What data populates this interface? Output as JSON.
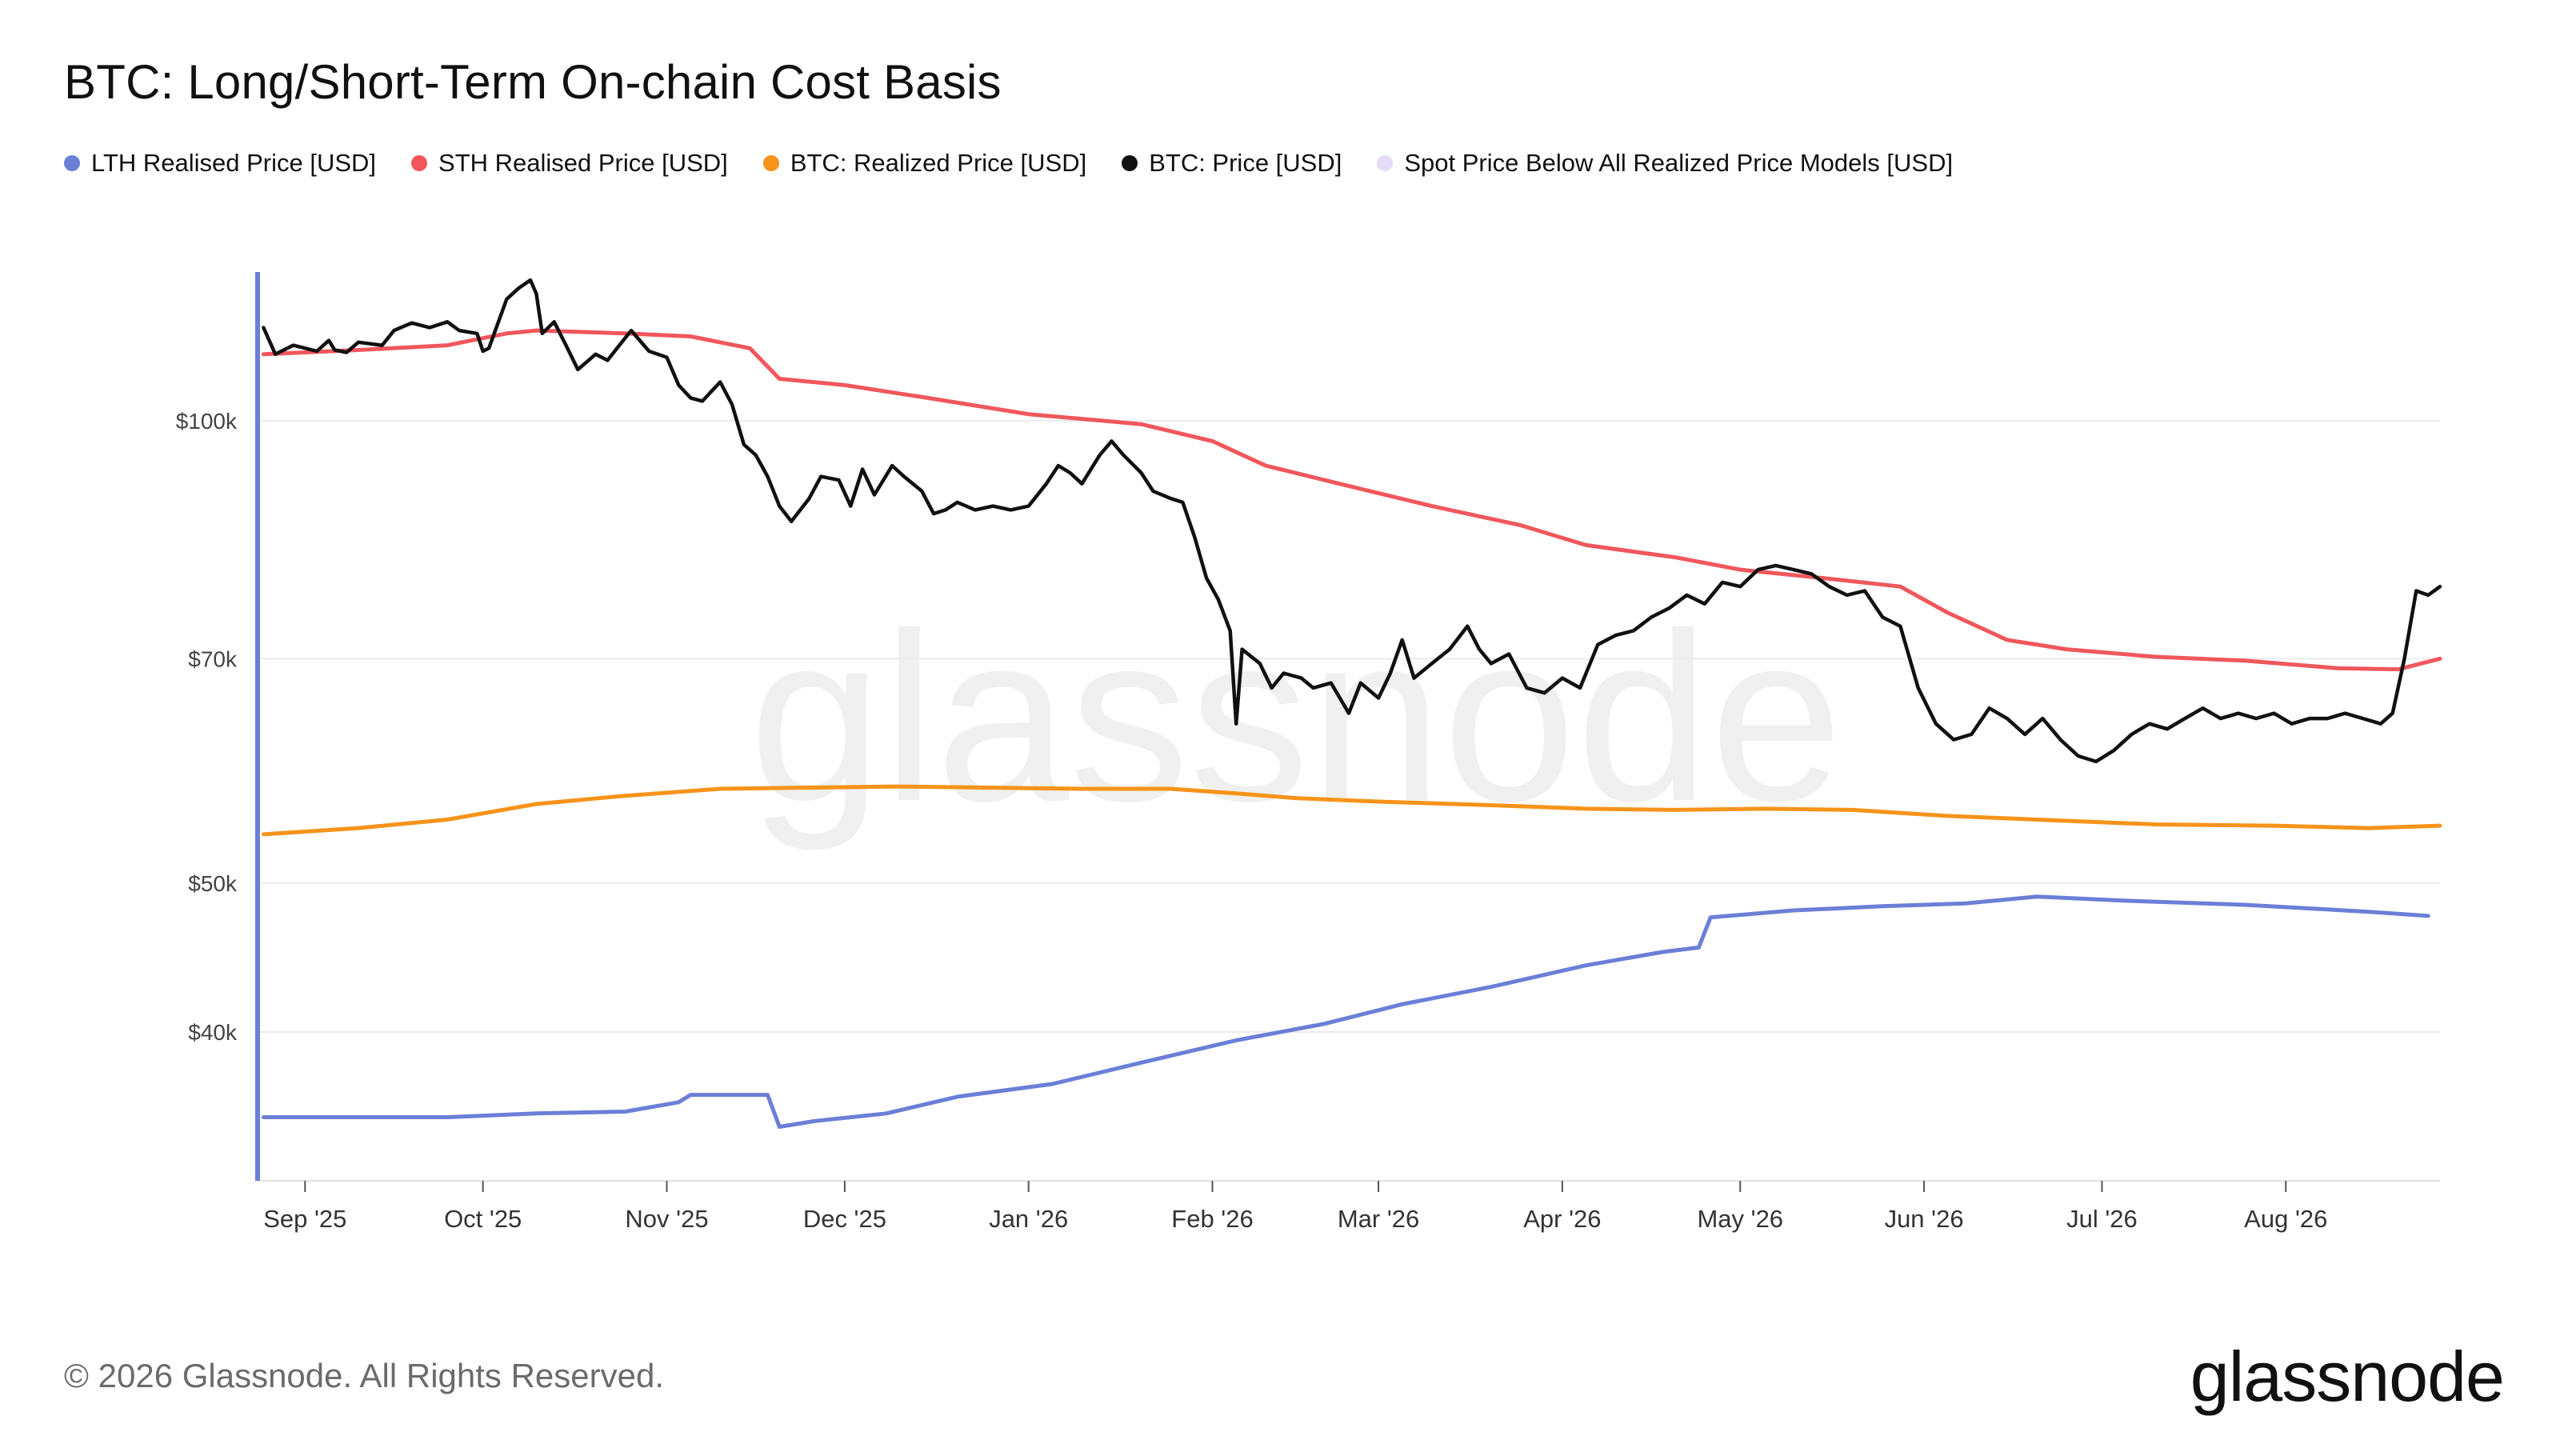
{
  "title": "BTC: Long/Short-Term On-chain Cost Basis",
  "footer": {
    "copyright": "© 2026 Glassnode. All Rights Reserved.",
    "logo_text": "glassnode",
    "watermark_text": "glassnode"
  },
  "chart_data": {
    "type": "line",
    "y_scale": "log",
    "ylim": [
      32000,
      125000
    ],
    "y_ticks": [
      {
        "value": 40000,
        "label": "$40k"
      },
      {
        "value": 50000,
        "label": "$50k"
      },
      {
        "value": 70000,
        "label": "$70k"
      },
      {
        "value": 100000,
        "label": "$100k"
      }
    ],
    "xlim": [
      "2025-08-24",
      "2026-08-27"
    ],
    "x_ticks": [
      {
        "date": "2025-09-01",
        "label": "Sep '25"
      },
      {
        "date": "2025-10-01",
        "label": "Oct '25"
      },
      {
        "date": "2025-11-01",
        "label": "Nov '25"
      },
      {
        "date": "2025-12-01",
        "label": "Dec '25"
      },
      {
        "date": "2026-01-01",
        "label": "Jan '26"
      },
      {
        "date": "2026-02-01",
        "label": "Feb '26"
      },
      {
        "date": "2026-03-01",
        "label": "Mar '26"
      },
      {
        "date": "2026-04-01",
        "label": "Apr '26"
      },
      {
        "date": "2026-05-01",
        "label": "May '26"
      },
      {
        "date": "2026-06-01",
        "label": "Jun '26"
      },
      {
        "date": "2026-07-01",
        "label": "Jul '26"
      },
      {
        "date": "2026-08-01",
        "label": "Aug '26"
      }
    ],
    "grid": true,
    "legend_position": "top-left",
    "series": [
      {
        "name": "LTH Realised Price [USD]",
        "color": "#6b7fd7",
        "points": [
          [
            "2025-08-25",
            35200
          ],
          [
            "2025-09-05",
            35200
          ],
          [
            "2025-09-25",
            35200
          ],
          [
            "2025-10-10",
            35400
          ],
          [
            "2025-10-25",
            35500
          ],
          [
            "2025-11-03",
            36000
          ],
          [
            "2025-11-05",
            36400
          ],
          [
            "2025-11-18",
            36400
          ],
          [
            "2025-11-20",
            34700
          ],
          [
            "2025-11-26",
            35000
          ],
          [
            "2025-12-08",
            35400
          ],
          [
            "2025-12-20",
            36300
          ],
          [
            "2026-01-05",
            37000
          ],
          [
            "2026-01-20",
            38200
          ],
          [
            "2026-02-05",
            39500
          ],
          [
            "2026-02-20",
            40500
          ],
          [
            "2026-03-05",
            41700
          ],
          [
            "2026-03-20",
            42800
          ],
          [
            "2026-04-05",
            44200
          ],
          [
            "2026-04-18",
            45100
          ],
          [
            "2026-04-24",
            45400
          ],
          [
            "2026-04-26",
            47500
          ],
          [
            "2026-05-10",
            48000
          ],
          [
            "2026-05-25",
            48300
          ],
          [
            "2026-06-08",
            48500
          ],
          [
            "2026-06-20",
            49000
          ],
          [
            "2026-07-05",
            48700
          ],
          [
            "2026-07-25",
            48400
          ],
          [
            "2026-08-15",
            47900
          ],
          [
            "2026-08-25",
            47600
          ]
        ]
      },
      {
        "name": "STH Realised Price [USD]",
        "color": "#f0575c",
        "points": [
          [
            "2025-08-25",
            110500
          ],
          [
            "2025-09-10",
            111200
          ],
          [
            "2025-09-25",
            112000
          ],
          [
            "2025-10-05",
            114000
          ],
          [
            "2025-10-10",
            114500
          ],
          [
            "2025-10-25",
            114000
          ],
          [
            "2025-11-05",
            113500
          ],
          [
            "2025-11-15",
            111500
          ],
          [
            "2025-11-20",
            106500
          ],
          [
            "2025-12-01",
            105500
          ],
          [
            "2025-12-15",
            103500
          ],
          [
            "2026-01-01",
            101000
          ],
          [
            "2026-01-20",
            99500
          ],
          [
            "2026-02-01",
            97000
          ],
          [
            "2026-02-10",
            93500
          ],
          [
            "2026-02-25",
            90500
          ],
          [
            "2026-03-10",
            88000
          ],
          [
            "2026-03-25",
            85500
          ],
          [
            "2026-04-05",
            83000
          ],
          [
            "2026-04-20",
            81500
          ],
          [
            "2026-05-01",
            80000
          ],
          [
            "2026-05-15",
            79000
          ],
          [
            "2026-05-28",
            78000
          ],
          [
            "2026-06-05",
            75000
          ],
          [
            "2026-06-15",
            72000
          ],
          [
            "2026-06-25",
            71000
          ],
          [
            "2026-07-10",
            70200
          ],
          [
            "2026-07-25",
            69800
          ],
          [
            "2026-08-10",
            69000
          ],
          [
            "2026-08-20",
            68900
          ],
          [
            "2026-08-27",
            70000
          ]
        ]
      },
      {
        "name": "BTC: Realized Price [USD]",
        "color": "#f7931a",
        "points": [
          [
            "2025-08-25",
            53800
          ],
          [
            "2025-09-10",
            54300
          ],
          [
            "2025-09-25",
            55000
          ],
          [
            "2025-10-10",
            56300
          ],
          [
            "2025-10-25",
            57000
          ],
          [
            "2025-11-10",
            57600
          ],
          [
            "2025-11-25",
            57700
          ],
          [
            "2025-12-10",
            57800
          ],
          [
            "2025-12-25",
            57700
          ],
          [
            "2026-01-10",
            57600
          ],
          [
            "2026-01-25",
            57600
          ],
          [
            "2026-02-05",
            57200
          ],
          [
            "2026-02-15",
            56800
          ],
          [
            "2026-03-01",
            56500
          ],
          [
            "2026-03-20",
            56200
          ],
          [
            "2026-04-05",
            55900
          ],
          [
            "2026-04-20",
            55800
          ],
          [
            "2026-05-05",
            55900
          ],
          [
            "2026-05-20",
            55800
          ],
          [
            "2026-06-05",
            55300
          ],
          [
            "2026-06-20",
            55000
          ],
          [
            "2026-07-10",
            54600
          ],
          [
            "2026-07-30",
            54500
          ],
          [
            "2026-08-15",
            54300
          ],
          [
            "2026-08-27",
            54500
          ]
        ]
      },
      {
        "name": "BTC: Price [USD]",
        "color": "#111111",
        "points": [
          [
            "2025-08-25",
            115000
          ],
          [
            "2025-08-27",
            110500
          ],
          [
            "2025-08-30",
            112000
          ],
          [
            "2025-09-03",
            111000
          ],
          [
            "2025-09-05",
            112800
          ],
          [
            "2025-09-06",
            111200
          ],
          [
            "2025-09-08",
            110800
          ],
          [
            "2025-09-10",
            112500
          ],
          [
            "2025-09-14",
            112000
          ],
          [
            "2025-09-16",
            114500
          ],
          [
            "2025-09-19",
            115800
          ],
          [
            "2025-09-22",
            115000
          ],
          [
            "2025-09-25",
            116000
          ],
          [
            "2025-09-27",
            114500
          ],
          [
            "2025-09-30",
            114000
          ],
          [
            "2025-10-01",
            111000
          ],
          [
            "2025-10-02",
            111500
          ],
          [
            "2025-10-05",
            120000
          ],
          [
            "2025-10-07",
            122000
          ],
          [
            "2025-10-09",
            123500
          ],
          [
            "2025-10-10",
            121000
          ],
          [
            "2025-10-11",
            114000
          ],
          [
            "2025-10-13",
            116000
          ],
          [
            "2025-10-15",
            112000
          ],
          [
            "2025-10-17",
            108000
          ],
          [
            "2025-10-20",
            110500
          ],
          [
            "2025-10-22",
            109500
          ],
          [
            "2025-10-24",
            112000
          ],
          [
            "2025-10-26",
            114500
          ],
          [
            "2025-10-29",
            111000
          ],
          [
            "2025-11-01",
            110000
          ],
          [
            "2025-11-03",
            105500
          ],
          [
            "2025-11-05",
            103500
          ],
          [
            "2025-11-07",
            103000
          ],
          [
            "2025-11-10",
            106000
          ],
          [
            "2025-11-12",
            102500
          ],
          [
            "2025-11-14",
            96500
          ],
          [
            "2025-11-16",
            95000
          ],
          [
            "2025-11-18",
            92000
          ],
          [
            "2025-11-20",
            88000
          ],
          [
            "2025-11-22",
            86000
          ],
          [
            "2025-11-25",
            89000
          ],
          [
            "2025-11-27",
            92000
          ],
          [
            "2025-11-30",
            91500
          ],
          [
            "2025-12-02",
            88000
          ],
          [
            "2025-12-04",
            93000
          ],
          [
            "2025-12-06",
            89500
          ],
          [
            "2025-12-09",
            93500
          ],
          [
            "2025-12-11",
            92000
          ],
          [
            "2025-12-14",
            90000
          ],
          [
            "2025-12-16",
            87000
          ],
          [
            "2025-12-18",
            87500
          ],
          [
            "2025-12-20",
            88500
          ],
          [
            "2025-12-23",
            87500
          ],
          [
            "2025-12-26",
            88000
          ],
          [
            "2025-12-29",
            87500
          ],
          [
            "2026-01-01",
            88000
          ],
          [
            "2026-01-04",
            91000
          ],
          [
            "2026-01-06",
            93500
          ],
          [
            "2026-01-08",
            92500
          ],
          [
            "2026-01-10",
            91000
          ],
          [
            "2026-01-13",
            95000
          ],
          [
            "2026-01-15",
            97000
          ],
          [
            "2026-01-17",
            95000
          ],
          [
            "2026-01-20",
            92500
          ],
          [
            "2026-01-22",
            90000
          ],
          [
            "2026-01-25",
            89000
          ],
          [
            "2026-01-27",
            88500
          ],
          [
            "2026-01-29",
            84000
          ],
          [
            "2026-01-31",
            79000
          ],
          [
            "2026-02-02",
            76500
          ],
          [
            "2026-02-04",
            73000
          ],
          [
            "2026-02-05",
            63500
          ],
          [
            "2026-02-06",
            71000
          ],
          [
            "2026-02-09",
            69500
          ],
          [
            "2026-02-11",
            67000
          ],
          [
            "2026-02-13",
            68500
          ],
          [
            "2026-02-16",
            68000
          ],
          [
            "2026-02-18",
            67000
          ],
          [
            "2026-02-21",
            67500
          ],
          [
            "2026-02-24",
            64500
          ],
          [
            "2026-02-26",
            67500
          ],
          [
            "2026-03-01",
            66000
          ],
          [
            "2026-03-03",
            68500
          ],
          [
            "2026-03-05",
            72000
          ],
          [
            "2026-03-07",
            68000
          ],
          [
            "2026-03-10",
            69500
          ],
          [
            "2026-03-13",
            71000
          ],
          [
            "2026-03-16",
            73500
          ],
          [
            "2026-03-18",
            71000
          ],
          [
            "2026-03-20",
            69500
          ],
          [
            "2026-03-23",
            70500
          ],
          [
            "2026-03-26",
            67000
          ],
          [
            "2026-03-29",
            66500
          ],
          [
            "2026-04-01",
            68000
          ],
          [
            "2026-04-04",
            67000
          ],
          [
            "2026-04-07",
            71500
          ],
          [
            "2026-04-10",
            72500
          ],
          [
            "2026-04-13",
            73000
          ],
          [
            "2026-04-16",
            74500
          ],
          [
            "2026-04-19",
            75500
          ],
          [
            "2026-04-22",
            77000
          ],
          [
            "2026-04-25",
            76000
          ],
          [
            "2026-04-28",
            78500
          ],
          [
            "2026-05-01",
            78000
          ],
          [
            "2026-05-04",
            80000
          ],
          [
            "2026-05-07",
            80500
          ],
          [
            "2026-05-10",
            80000
          ],
          [
            "2026-05-13",
            79500
          ],
          [
            "2026-05-16",
            78000
          ],
          [
            "2026-05-19",
            77000
          ],
          [
            "2026-05-22",
            77500
          ],
          [
            "2026-05-25",
            74500
          ],
          [
            "2026-05-28",
            73500
          ],
          [
            "2026-05-31",
            67000
          ],
          [
            "2026-06-03",
            63500
          ],
          [
            "2026-06-06",
            62000
          ],
          [
            "2026-06-09",
            62500
          ],
          [
            "2026-06-12",
            65000
          ],
          [
            "2026-06-15",
            64000
          ],
          [
            "2026-06-18",
            62500
          ],
          [
            "2026-06-21",
            64000
          ],
          [
            "2026-06-24",
            62000
          ],
          [
            "2026-06-27",
            60500
          ],
          [
            "2026-06-30",
            60000
          ],
          [
            "2026-07-03",
            61000
          ],
          [
            "2026-07-06",
            62500
          ],
          [
            "2026-07-09",
            63500
          ],
          [
            "2026-07-12",
            63000
          ],
          [
            "2026-07-15",
            64000
          ],
          [
            "2026-07-18",
            65000
          ],
          [
            "2026-07-21",
            64000
          ],
          [
            "2026-07-24",
            64500
          ],
          [
            "2026-07-27",
            64000
          ],
          [
            "2026-07-30",
            64500
          ],
          [
            "2026-08-02",
            63500
          ],
          [
            "2026-08-05",
            64000
          ],
          [
            "2026-08-08",
            64000
          ],
          [
            "2026-08-11",
            64500
          ],
          [
            "2026-08-14",
            64000
          ],
          [
            "2026-08-17",
            63500
          ],
          [
            "2026-08-19",
            64500
          ],
          [
            "2026-08-21",
            70000
          ],
          [
            "2026-08-23",
            77500
          ],
          [
            "2026-08-25",
            77000
          ],
          [
            "2026-08-27",
            78000
          ]
        ]
      },
      {
        "name": "Spot Price Below All Realized Price Models [USD]",
        "color": "#e4dcf8",
        "points": []
      }
    ]
  }
}
